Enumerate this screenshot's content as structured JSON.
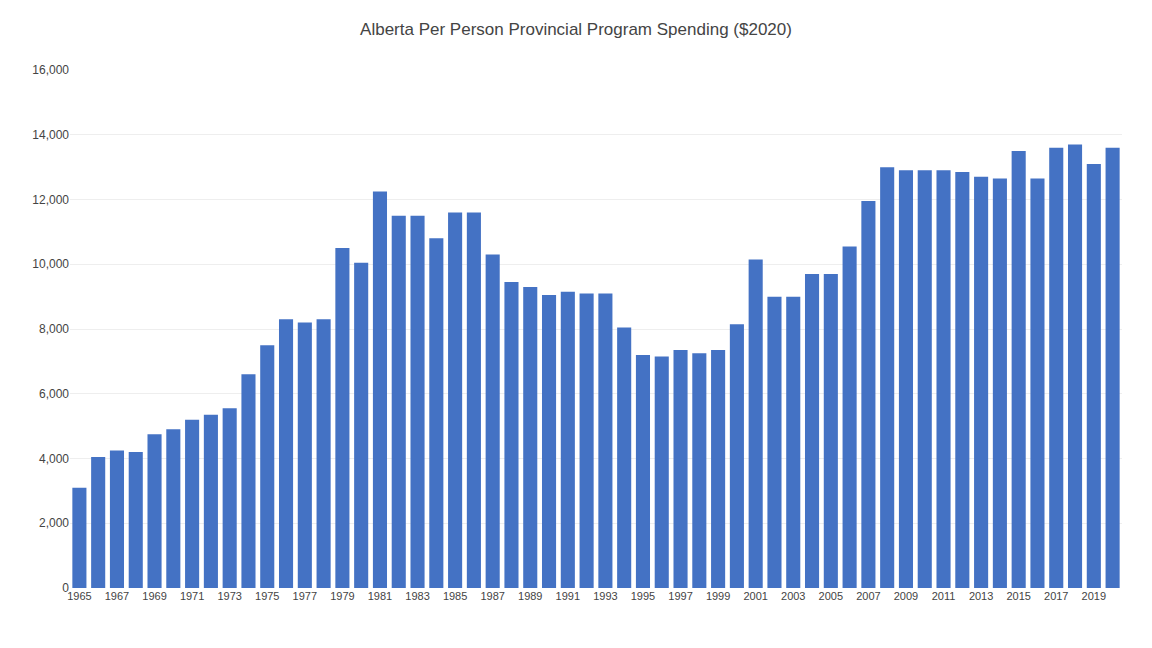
{
  "chart_data": {
    "type": "bar",
    "title": "Alberta Per Person Provincial Program Spending ($2020)",
    "categories": [
      "1965",
      null,
      "1967",
      null,
      "1969",
      null,
      "1971",
      null,
      "1973",
      null,
      "1975",
      null,
      "1977",
      null,
      "1979",
      null,
      "1981",
      null,
      "1983",
      null,
      "1985",
      null,
      "1987",
      null,
      "1989",
      null,
      "1991",
      null,
      "1993",
      null,
      "1995",
      null,
      "1997",
      null,
      "1999",
      null,
      "2001",
      null,
      "2003",
      null,
      "2005",
      null,
      "2007",
      null,
      "2009",
      null,
      "2011",
      null,
      "2013",
      null,
      "2015",
      null,
      "2017",
      null,
      "2019",
      null
    ],
    "values": [
      3100,
      4050,
      4250,
      4200,
      4750,
      4900,
      5200,
      5350,
      5550,
      6600,
      7500,
      8300,
      8200,
      8300,
      10500,
      10050,
      12250,
      11500,
      11500,
      10800,
      11600,
      11600,
      10300,
      9450,
      9300,
      9050,
      9150,
      9100,
      9100,
      8050,
      7200,
      7150,
      7350,
      7250,
      7350,
      8150,
      10150,
      9000,
      9000,
      9700,
      9700,
      10550,
      11950,
      13000,
      12900,
      12900,
      12900,
      12850,
      12700,
      12650,
      13500,
      12650,
      13600,
      13700,
      13100,
      13600
    ],
    "color": "#4472C4",
    "ylim": [
      0,
      16000
    ],
    "yticks": [
      0,
      {
        "value": 2000,
        "label": "2,000"
      },
      {
        "value": 4000,
        "label": "4,000"
      },
      {
        "value": 6000,
        "label": "6,000"
      },
      {
        "value": 8000,
        "label": "8,000"
      },
      {
        "value": 10000,
        "label": "10,000"
      },
      {
        "value": 12000,
        "label": "12,000"
      },
      {
        "value": 14000,
        "label": "14,000"
      },
      {
        "value": 16000,
        "label": "16,000"
      }
    ],
    "grid": true
  }
}
